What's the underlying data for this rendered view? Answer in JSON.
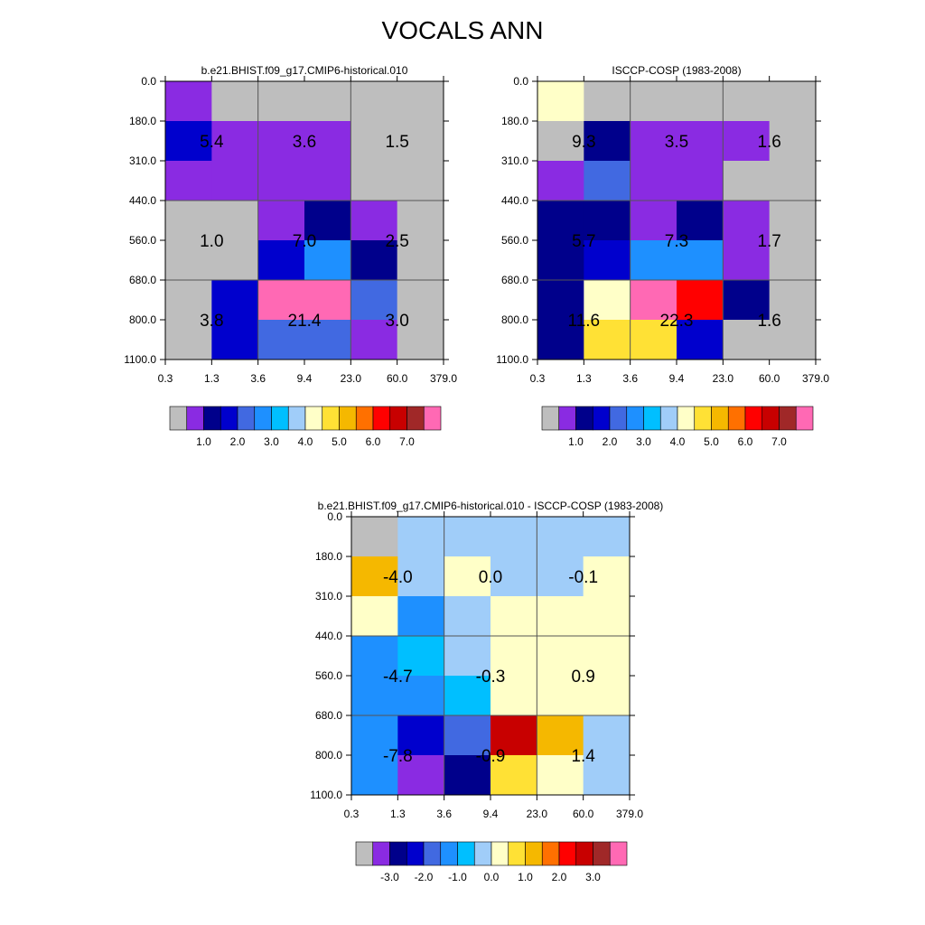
{
  "title": "VOCALS ANN",
  "palettes": {
    "abs": [
      "#bebebe",
      "#8a2be2",
      "#00008b",
      "#0000cd",
      "#4169e1",
      "#1e90ff",
      "#00bfff",
      "#a0cdf9",
      "#ffffc8",
      "#ffe135",
      "#f5b800",
      "#ff7000",
      "#ff0000",
      "#c80000",
      "#a02828",
      "#ff69b4"
    ],
    "diff": [
      "#bebebe",
      "#8a2be2",
      "#00008b",
      "#0000cd",
      "#4169e1",
      "#1e90ff",
      "#00bfff",
      "#a0cdf9",
      "#ffffc8",
      "#ffe135",
      "#f5b800",
      "#ff7000",
      "#ff0000",
      "#c80000",
      "#a02828",
      "#ff69b4"
    ]
  },
  "chart_data": [
    {
      "type": "heatmap",
      "title": "b.e21.BHIST.f09_g17.CMIP6-historical.010",
      "x_ticks": [
        "0.3",
        "1.3",
        "3.6",
        "9.4",
        "23.0",
        "60.0",
        "379.0"
      ],
      "y_ticks": [
        "0.0",
        "180.0",
        "310.0",
        "440.0",
        "560.0",
        "680.0",
        "800.0",
        "1100.0"
      ],
      "colorbar_labels": [
        "1.0",
        "2.0",
        "3.0",
        "4.0",
        "5.0",
        "6.0",
        "7.0"
      ],
      "cell_colors": [
        [
          1,
          0,
          0,
          0,
          0,
          0
        ],
        [
          3,
          1,
          1,
          1,
          0,
          0
        ],
        [
          1,
          1,
          1,
          1,
          0,
          0
        ],
        [
          0,
          0,
          1,
          2,
          1,
          0
        ],
        [
          0,
          0,
          3,
          5,
          2,
          0
        ],
        [
          0,
          3,
          15,
          15,
          4,
          0
        ],
        [
          0,
          3,
          4,
          4,
          1,
          0
        ]
      ],
      "group_values": [
        [
          "5.4",
          "3.6",
          "1.5"
        ],
        [
          "1.0",
          "7.0",
          "2.5"
        ],
        [
          "3.8",
          "21.4",
          "3.0"
        ]
      ]
    },
    {
      "type": "heatmap",
      "title": "ISCCP-COSP (1983-2008)",
      "x_ticks": [
        "0.3",
        "1.3",
        "3.6",
        "9.4",
        "23.0",
        "60.0",
        "379.0"
      ],
      "y_ticks": [
        "0.0",
        "180.0",
        "310.0",
        "440.0",
        "560.0",
        "680.0",
        "800.0",
        "1100.0"
      ],
      "colorbar_labels": [
        "1.0",
        "2.0",
        "3.0",
        "4.0",
        "5.0",
        "6.0",
        "7.0"
      ],
      "cell_colors": [
        [
          8,
          0,
          0,
          0,
          0,
          0
        ],
        [
          0,
          2,
          1,
          1,
          1,
          0
        ],
        [
          1,
          4,
          1,
          1,
          0,
          0
        ],
        [
          2,
          2,
          1,
          2,
          1,
          0
        ],
        [
          2,
          3,
          5,
          5,
          1,
          0
        ],
        [
          2,
          8,
          15,
          12,
          2,
          0
        ],
        [
          2,
          9,
          9,
          3,
          0,
          0
        ]
      ],
      "group_values": [
        [
          "9.3",
          "3.5",
          "1.6"
        ],
        [
          "5.7",
          "7.3",
          "1.7"
        ],
        [
          "11.6",
          "22.3",
          "1.6"
        ]
      ]
    },
    {
      "type": "heatmap",
      "title": "b.e21.BHIST.f09_g17.CMIP6-historical.010 - ISCCP-COSP (1983-2008)",
      "x_ticks": [
        "0.3",
        "1.3",
        "3.6",
        "9.4",
        "23.0",
        "60.0",
        "379.0"
      ],
      "y_ticks": [
        "0.0",
        "180.0",
        "310.0",
        "440.0",
        "560.0",
        "680.0",
        "800.0",
        "1100.0"
      ],
      "colorbar_labels": [
        "-3.0",
        "-2.0",
        "-1.0",
        "0.0",
        "1.0",
        "2.0",
        "3.0"
      ],
      "cell_colors": [
        [
          0,
          7,
          7,
          7,
          7,
          7
        ],
        [
          10,
          7,
          8,
          7,
          7,
          8
        ],
        [
          8,
          5,
          7,
          8,
          8,
          8
        ],
        [
          5,
          6,
          7,
          8,
          8,
          8
        ],
        [
          5,
          5,
          6,
          8,
          8,
          8
        ],
        [
          5,
          3,
          4,
          13,
          10,
          7
        ],
        [
          5,
          1,
          2,
          9,
          8,
          7
        ]
      ],
      "group_values": [
        [
          "-4.0",
          "0.0",
          "-0.1"
        ],
        [
          "-4.7",
          "-0.3",
          "0.9"
        ],
        [
          "-7.8",
          "-0.9",
          "1.4"
        ]
      ]
    }
  ]
}
